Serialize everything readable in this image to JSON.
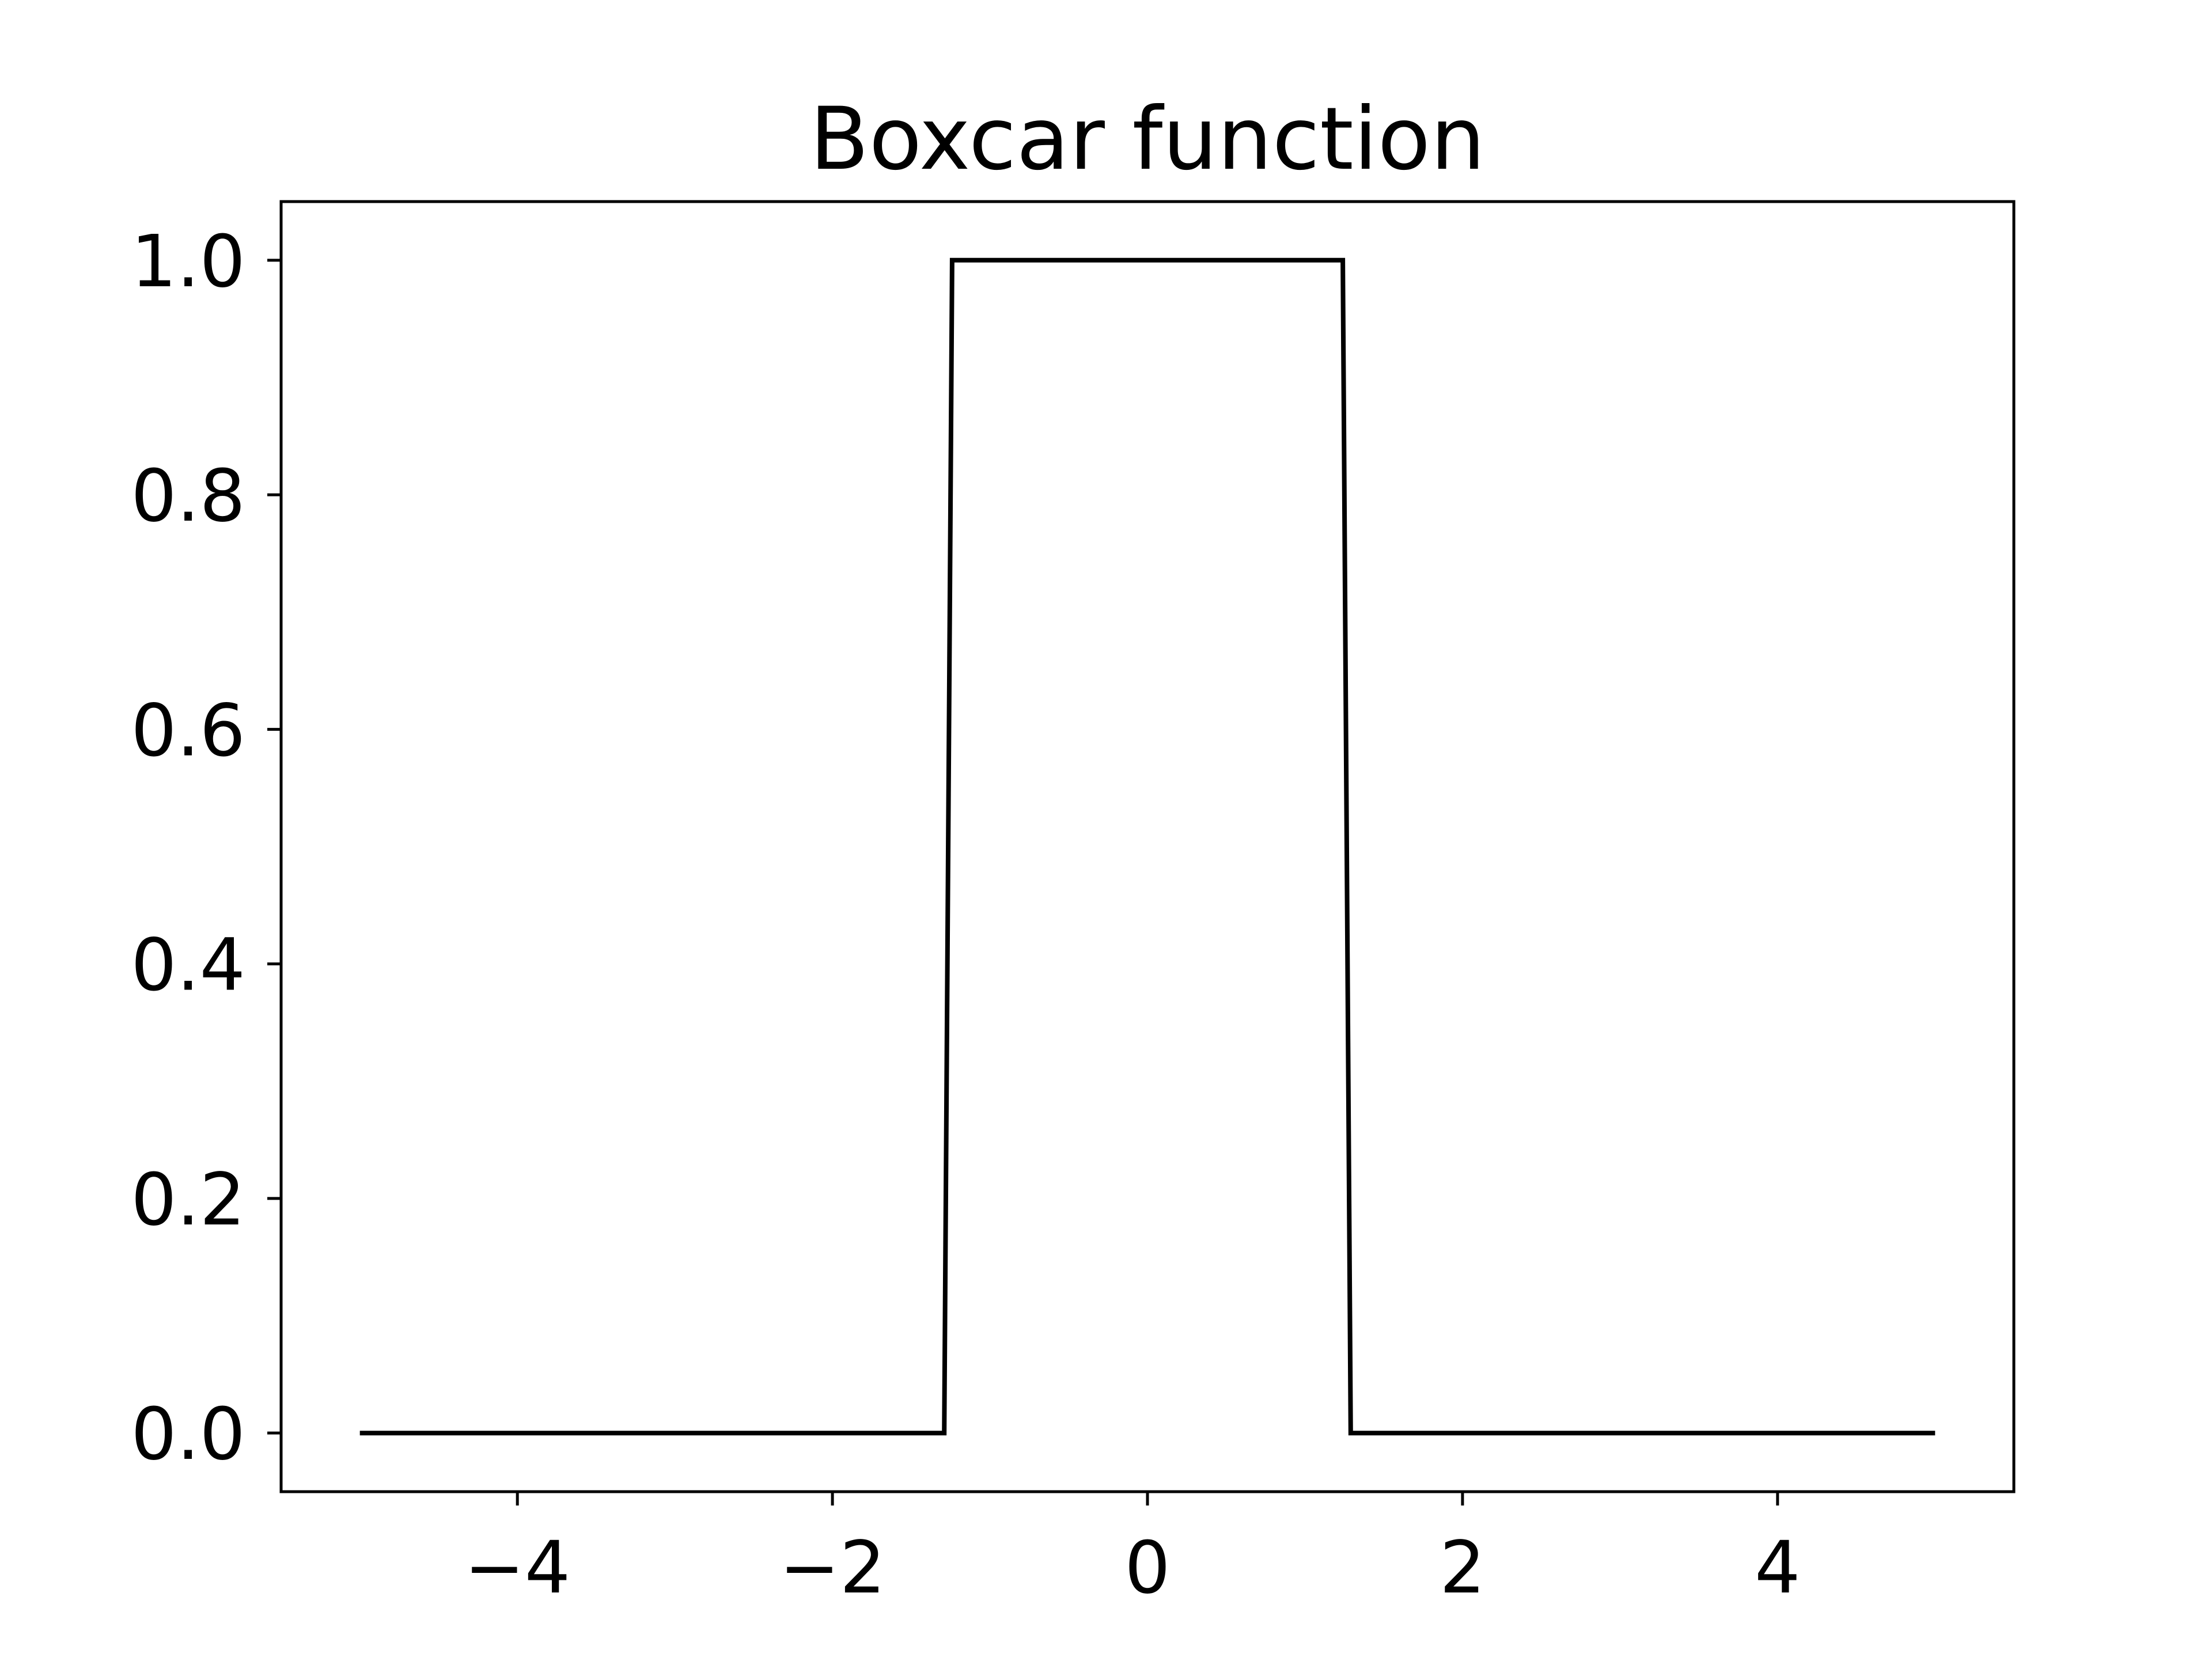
{
  "chart_data": {
    "type": "line",
    "title": "Boxcar function",
    "xlabel": "",
    "ylabel": "",
    "xlim": [
      -5.5,
      5.5
    ],
    "ylim": [
      -0.05,
      1.05
    ],
    "x_ticks": [
      -4,
      -2,
      0,
      2,
      4
    ],
    "x_tick_labels": [
      "−4",
      "−2",
      "0",
      "2",
      "4"
    ],
    "y_ticks": [
      0.0,
      0.2,
      0.4,
      0.6,
      0.8,
      1.0
    ],
    "y_tick_labels": [
      "0.0",
      "0.2",
      "0.4",
      "0.6",
      "0.8",
      "1.0"
    ],
    "grid": false,
    "legend": "none",
    "series": [
      {
        "color": "#000000",
        "x": [
          -5.0,
          -1.29,
          -1.24,
          1.24,
          1.29,
          5.0
        ],
        "y": [
          0.0,
          0.0,
          1.0,
          1.0,
          0.0,
          0.0
        ]
      }
    ]
  }
}
